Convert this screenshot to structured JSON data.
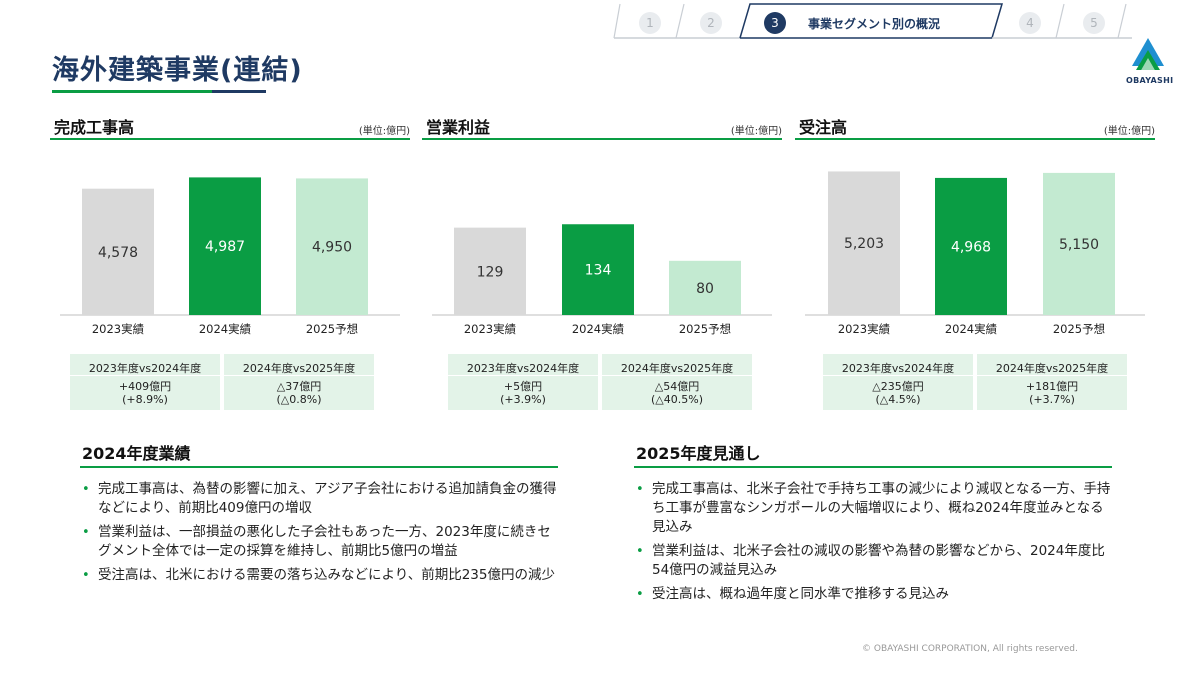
{
  "nav": {
    "steps": [
      "1",
      "2",
      "3",
      "4",
      "5"
    ],
    "active_step": "3",
    "active_label": "事業セグメント別の概況"
  },
  "page": {
    "title": "海外建築事業(連結)"
  },
  "logo": {
    "text": "OBAYASHI",
    "icon": "obayashi-triangle-logo"
  },
  "colors": {
    "navy": "#1f3a63",
    "green": "#0a9d44",
    "gray_bar": "#d9d9d9",
    "light_green_bar": "#c3ead1",
    "compare_bg": "#e3f3e8"
  },
  "chart_data": [
    {
      "type": "bar",
      "title": "完成工事高",
      "unit": "(単位:億円)",
      "categories": [
        "2023実績",
        "2024実績",
        "2025予想"
      ],
      "values": [
        4578,
        4987,
        4950
      ],
      "value_labels": [
        "4,578",
        "4,987",
        "4,950"
      ],
      "bar_colors": [
        "#d9d9d9",
        "#0a9d44",
        "#c3ead1"
      ],
      "ylim": [
        0,
        5400
      ],
      "comparisons": [
        {
          "head": "2023年度vs2024年度",
          "line1": "+409億円",
          "line2": "(+8.9%)"
        },
        {
          "head": "2024年度vs2025年度",
          "line1": "△37億円",
          "line2": "(△0.8%)"
        }
      ]
    },
    {
      "type": "bar",
      "title": "営業利益",
      "unit": "(単位:億円)",
      "categories": [
        "2023実績",
        "2024実績",
        "2025予想"
      ],
      "values": [
        129,
        134,
        80
      ],
      "value_labels": [
        "129",
        "134",
        "80"
      ],
      "bar_colors": [
        "#d9d9d9",
        "#0a9d44",
        "#c3ead1"
      ],
      "ylim": [
        0,
        220
      ],
      "comparisons": [
        {
          "head": "2023年度vs2024年度",
          "line1": "+5億円",
          "line2": "(+3.9%)"
        },
        {
          "head": "2024年度vs2025年度",
          "line1": "△54億円",
          "line2": "(△40.5%)"
        }
      ]
    },
    {
      "type": "bar",
      "title": "受注高",
      "unit": "(単位:億円)",
      "categories": [
        "2023実績",
        "2024実績",
        "2025予想"
      ],
      "values": [
        5203,
        4968,
        5150
      ],
      "value_labels": [
        "5,203",
        "4,968",
        "5,150"
      ],
      "bar_colors": [
        "#d9d9d9",
        "#0a9d44",
        "#c3ead1"
      ],
      "ylim": [
        0,
        5400
      ],
      "comparisons": [
        {
          "head": "2023年度vs2024年度",
          "line1": "△235億円",
          "line2": "(△4.5%)"
        },
        {
          "head": "2024年度vs2025年度",
          "line1": "+181億円",
          "line2": "(+3.7%)"
        }
      ]
    }
  ],
  "results_2024": {
    "title": "2024年度業績",
    "bullets": [
      "完成工事高は、為替の影響に加え、アジア子会社における追加請負金の獲得などにより、前期比409億円の増収",
      "営業利益は、一部損益の悪化した子会社もあった一方、2023年度に続きセグメント全体では一定の採算を維持し、前期比5億円の増益",
      "受注高は、北米における需要の落ち込みなどにより、前期比235億円の減少"
    ]
  },
  "outlook_2025": {
    "title": "2025年度見通し",
    "bullets": [
      "完成工事高は、北米子会社で手持ち工事の減少により減収となる一方、手持ち工事が豊富なシンガポールの大幅増収により、概ね2024年度並みとなる見込み",
      "営業利益は、北米子会社の減収の影響や為替の影響などから、2024年度比54億円の減益見込み",
      "受注高は、概ね過年度と同水準で推移する見込み"
    ]
  },
  "footer": {
    "copyright": "© OBAYASHI CORPORATION, All rights reserved."
  }
}
